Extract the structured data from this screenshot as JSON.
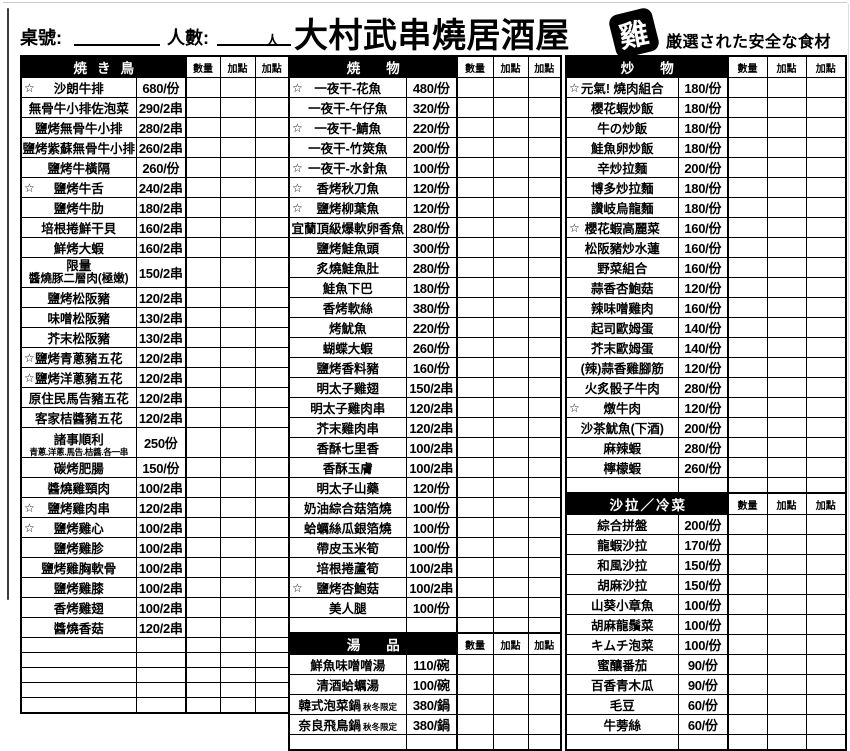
{
  "header": {
    "table_no_label": "桌號:",
    "people_label": "人數:",
    "people_unit": "人",
    "title": "大村武串燒居酒屋",
    "seal_char": "雞",
    "tagline": "厳選された安全な食材"
  },
  "col_headers": {
    "qty": "數量",
    "add": "加點"
  },
  "icons": {
    "star": "☆"
  },
  "colors": {
    "section_header_bg": "#000000",
    "paper": "#ffffff",
    "ink": "#000000"
  },
  "sections": {
    "yakitori": {
      "title": "焼き鳥",
      "items": [
        {
          "s": 1,
          "n": "沙朗牛排",
          "p": "680/份"
        },
        {
          "n": "無骨牛小排佐泡菜",
          "p": "290/2串"
        },
        {
          "n": "鹽烤無骨牛小排",
          "p": "280/2串"
        },
        {
          "n": "鹽烤紫蘇無骨牛小排",
          "p": "260/2串"
        },
        {
          "n": "鹽烤牛橫隔",
          "p": "260/份"
        },
        {
          "s": 1,
          "n": "鹽烤牛舌",
          "p": "240/2串"
        },
        {
          "n": "鹽烤牛肋",
          "p": "180/2串"
        },
        {
          "n": "培根捲鮮干貝",
          "p": "160/2串"
        },
        {
          "n": "鮮烤大蝦",
          "p": "160/2串"
        },
        {
          "above": "限量",
          "n": "醬燒豚二層肉(極嫩)",
          "p": "150/2串",
          "tall": 1
        },
        {
          "n": "鹽烤松阪豬",
          "p": "120/2串"
        },
        {
          "n": "味噌松阪豬",
          "p": "130/2串"
        },
        {
          "n": "芥末松阪豬",
          "p": "130/2串"
        },
        {
          "s": 1,
          "n": "鹽烤青蔥豬五花",
          "p": "120/2串"
        },
        {
          "s": 1,
          "n": "鹽烤洋蔥豬五花",
          "p": "120/2串"
        },
        {
          "n": "原住民馬告豬五花",
          "p": "120/2串"
        },
        {
          "n": "客家桔醬豬五花",
          "p": "120/2串"
        },
        {
          "n": "諸事順利",
          "below": "青蔥.洋蔥.馬告.桔醬.各一串",
          "p": "250份",
          "tall": 1
        },
        {
          "n": "碳烤肥腸",
          "p": "150/份"
        },
        {
          "n": "醬燒雞頸肉",
          "p": "100/2串"
        },
        {
          "s": 1,
          "n": "鹽烤雞肉串",
          "p": "120/2串"
        },
        {
          "s": 1,
          "n": "鹽烤雞心",
          "p": "100/2串"
        },
        {
          "n": "鹽烤雞胗",
          "p": "100/2串"
        },
        {
          "n": "鹽烤雞胸軟骨",
          "p": "100/2串"
        },
        {
          "n": "鹽烤雞膝",
          "p": "100/2串"
        },
        {
          "n": "香烤雞翅",
          "p": "100/2串"
        },
        {
          "n": "醬燒香菇",
          "p": "120/2串"
        },
        {
          "empty": 1
        },
        {
          "empty": 1
        },
        {
          "empty": 1
        },
        {
          "empty": 1
        },
        {
          "empty": 1
        }
      ]
    },
    "grill": {
      "title": "焼物",
      "items": [
        {
          "s": 1,
          "n": "一夜干-花魚",
          "p": "480/份"
        },
        {
          "n": "一夜干-午仔魚",
          "p": "320/份"
        },
        {
          "s": 1,
          "n": "一夜干-鯖魚",
          "p": "220/份"
        },
        {
          "n": "一夜干-竹筴魚",
          "p": "200/份"
        },
        {
          "s": 1,
          "n": "一夜干-水針魚",
          "p": "100/份"
        },
        {
          "s": 1,
          "n": "香烤秋刀魚",
          "p": "120/份"
        },
        {
          "s": 1,
          "n": "鹽烤柳葉魚",
          "p": "120/份"
        },
        {
          "n": "宜蘭頂級爆軟卵香魚",
          "p": "280/份"
        },
        {
          "n": "鹽烤鮭魚頭",
          "p": "300/份"
        },
        {
          "n": "炙燒鮭魚肚",
          "p": "280/份"
        },
        {
          "n": "鮭魚下巴",
          "p": "180/份"
        },
        {
          "n": "香烤軟絲",
          "p": "380/份"
        },
        {
          "n": "烤魷魚",
          "p": "220/份"
        },
        {
          "n": "蝴蝶大蝦",
          "p": "260/份"
        },
        {
          "n": "鹽烤香料豬",
          "p": "160/份"
        },
        {
          "n": "明太子雞翅",
          "p": "150/2串"
        },
        {
          "n": "明太子雞肉串",
          "p": "120/2串"
        },
        {
          "n": "芥末雞肉串",
          "p": "120/2串"
        },
        {
          "n": "香酥七里香",
          "p": "100/2串"
        },
        {
          "n": "香酥玉膚",
          "p": "100/2串"
        },
        {
          "n": "明太子山藥",
          "p": "120/份"
        },
        {
          "n": "奶油綜合菇箔燒",
          "p": "100/份"
        },
        {
          "n": "蛤蠣絲瓜銀箔燒",
          "p": "100/份"
        },
        {
          "n": "帶皮玉米筍",
          "p": "100/份"
        },
        {
          "n": "培根捲蘆筍",
          "p": "100/2串"
        },
        {
          "s": 1,
          "n": "鹽烤杏鮑菇",
          "p": "100/2串"
        },
        {
          "n": "美人腿",
          "p": "100/份"
        },
        {
          "empty": 1
        }
      ]
    },
    "soup": {
      "title": "湯品",
      "items": [
        {
          "n": "鮮魚味噌噌湯",
          "p": "110/碗"
        },
        {
          "n": "清酒蛤蠣湯",
          "p": "100/碗"
        },
        {
          "n": "韓式泡菜鍋",
          "suf": "秋冬限定",
          "p": "380/鍋"
        },
        {
          "n": "奈良飛鳥鍋",
          "suf": "秋冬限定",
          "p": "380/鍋"
        },
        {
          "empty": 1
        }
      ]
    },
    "stirfry": {
      "title": "炒物",
      "items": [
        {
          "s": 1,
          "n": "元氣! 燒肉組合",
          "p": "180/份"
        },
        {
          "n": "櫻花蝦炒飯",
          "p": "180/份"
        },
        {
          "n": "牛の炒飯",
          "p": "180/份"
        },
        {
          "n": "鮭魚卵炒飯",
          "p": "180/份"
        },
        {
          "n": "辛炒拉麵",
          "p": "200/份"
        },
        {
          "n": "博多炒拉麵",
          "p": "180/份"
        },
        {
          "n": "讚岐烏龍麵",
          "p": "180/份"
        },
        {
          "s": 1,
          "n": "櫻花蝦高麗菜",
          "p": "160/份"
        },
        {
          "n": "松阪豬炒水蓮",
          "p": "160/份"
        },
        {
          "n": "野菜組合",
          "p": "160/份"
        },
        {
          "n": "蒜香杏鮑菇",
          "p": "120/份"
        },
        {
          "n": "辣味噌雞肉",
          "p": "160/份"
        },
        {
          "n": "起司歐姆蛋",
          "p": "140/份"
        },
        {
          "n": "芥末歐姆蛋",
          "p": "140/份"
        },
        {
          "n": "(辣)蒜香雞腳筋",
          "p": "120/份"
        },
        {
          "n": "火炙骰子牛肉",
          "p": "280/份"
        },
        {
          "s": 1,
          "n": "燉牛肉",
          "p": "120/份"
        },
        {
          "n": "沙茶魷魚(下酒)",
          "p": "200/份"
        },
        {
          "n": "麻辣蝦",
          "p": "280/份"
        },
        {
          "n": "檸檬蝦",
          "p": "260/份"
        },
        {
          "empty": 1
        }
      ]
    },
    "salad": {
      "title": "沙拉／冷菜",
      "items": [
        {
          "n": "綜合拼盤",
          "p": "200/份"
        },
        {
          "n": "龍蝦沙拉",
          "p": "170/份"
        },
        {
          "n": "和風沙拉",
          "p": "150/份"
        },
        {
          "n": "胡麻沙拉",
          "p": "150/份"
        },
        {
          "n": "山葵小章魚",
          "p": "100/份"
        },
        {
          "n": "胡麻龍鬚菜",
          "p": "100/份"
        },
        {
          "n": "キムチ泡菜",
          "p": "100/份"
        },
        {
          "n": "蜜釀番茄",
          "p": "90/份"
        },
        {
          "n": "百香青木瓜",
          "p": "90/份"
        },
        {
          "n": "毛豆",
          "p": "60/份"
        },
        {
          "n": "牛蒡絲",
          "p": "60/份"
        },
        {
          "empty": 1
        }
      ]
    }
  }
}
